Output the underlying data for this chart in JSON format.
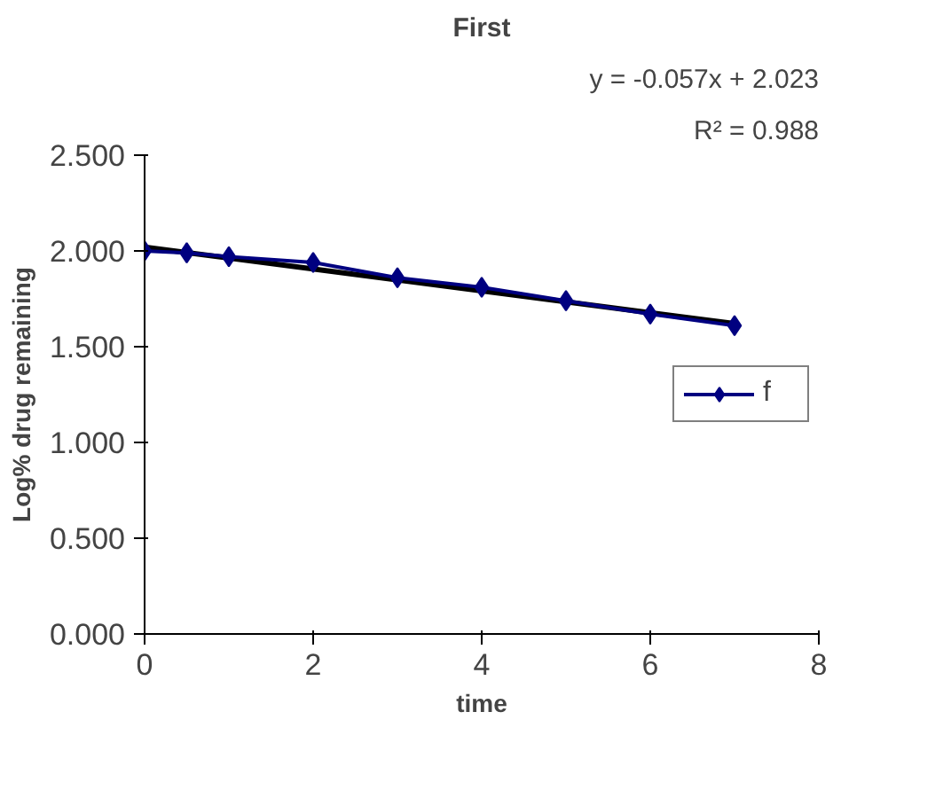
{
  "chart_data": {
    "type": "line",
    "title": "First",
    "xlabel": "time",
    "ylabel": "Log% drug remaining",
    "annotations": [
      "y = -0.057x + 2.023",
      "R² = 0.988"
    ],
    "x": [
      0,
      0.5,
      1,
      2,
      3,
      4,
      5,
      6,
      7
    ],
    "series": [
      {
        "name": "f",
        "color": "#000080",
        "values": [
          2.0,
          1.99,
          1.97,
          1.94,
          1.86,
          1.81,
          1.74,
          1.67,
          1.61
        ],
        "marker": "diamond"
      },
      {
        "color": "#000000",
        "x": [
          0,
          7
        ],
        "values": [
          2.02,
          1.62
        ],
        "marker": "none"
      }
    ],
    "xlim": [
      0,
      8
    ],
    "xticks": [
      0,
      2,
      4,
      6,
      8
    ],
    "ylim": [
      0,
      2.5
    ],
    "yticks": [
      {
        "value": 0,
        "label": "0.000"
      },
      {
        "value": 0.5,
        "label": "0.500"
      },
      {
        "value": 1,
        "label": "1.000"
      },
      {
        "value": 1.5,
        "label": "1.500"
      },
      {
        "value": 2,
        "label": "2.000"
      },
      {
        "value": 2.5,
        "label": "2.500"
      }
    ],
    "grid": false,
    "legend": "right"
  }
}
